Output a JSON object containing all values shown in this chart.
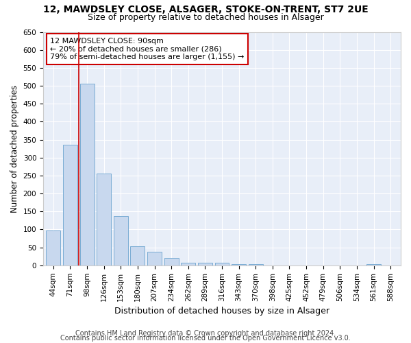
{
  "title1": "12, MAWDSLEY CLOSE, ALSAGER, STOKE-ON-TRENT, ST7 2UE",
  "title2": "Size of property relative to detached houses in Alsager",
  "xlabel": "Distribution of detached houses by size in Alsager",
  "ylabel": "Number of detached properties",
  "categories": [
    "44sqm",
    "71sqm",
    "98sqm",
    "126sqm",
    "153sqm",
    "180sqm",
    "207sqm",
    "234sqm",
    "262sqm",
    "289sqm",
    "316sqm",
    "343sqm",
    "370sqm",
    "398sqm",
    "425sqm",
    "452sqm",
    "479sqm",
    "506sqm",
    "534sqm",
    "561sqm",
    "588sqm"
  ],
  "values": [
    97,
    335,
    505,
    255,
    138,
    53,
    37,
    21,
    8,
    8,
    8,
    4,
    4,
    0,
    0,
    0,
    0,
    0,
    0,
    4,
    0
  ],
  "bar_color": "#c8d8ee",
  "bar_edge_color": "#7aacd4",
  "vline_x": 1.5,
  "vline_color": "#cc0000",
  "annotation_text": "12 MAWDSLEY CLOSE: 90sqm\n← 20% of detached houses are smaller (286)\n79% of semi-detached houses are larger (1,155) →",
  "annotation_box_color": "#ffffff",
  "annotation_box_edge": "#cc0000",
  "ylim": [
    0,
    650
  ],
  "yticks": [
    0,
    50,
    100,
    150,
    200,
    250,
    300,
    350,
    400,
    450,
    500,
    550,
    600,
    650
  ],
  "footer1": "Contains HM Land Registry data © Crown copyright and database right 2024.",
  "footer2": "Contains public sector information licensed under the Open Government Licence v3.0.",
  "bg_color": "#e8eef8",
  "grid_color": "#ffffff",
  "title1_fontsize": 10,
  "title2_fontsize": 9,
  "xlabel_fontsize": 9,
  "ylabel_fontsize": 8.5,
  "tick_fontsize": 7.5,
  "annot_fontsize": 8,
  "footer_fontsize": 7
}
